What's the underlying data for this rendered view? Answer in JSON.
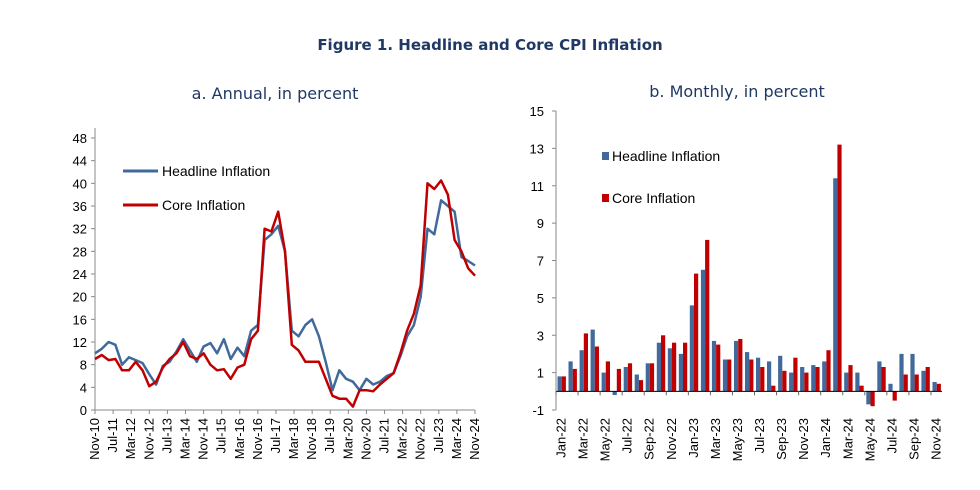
{
  "title": "Figure 1. Headline and Core CPI Inflation",
  "chart_data": [
    {
      "type": "line",
      "subtitle": "a. Annual, in percent",
      "ylim": [
        0,
        48
      ],
      "yticks": [
        0,
        4,
        8,
        12,
        16,
        20,
        24,
        28,
        32,
        36,
        40,
        44,
        48
      ],
      "xlim": [
        "Nov-10",
        "Nov-24"
      ],
      "xtick_labels": [
        "Nov-10",
        "Jul-11",
        "Mar-12",
        "Nov-12",
        "Jul-13",
        "Mar-14",
        "Nov-14",
        "Jul-15",
        "Mar-16",
        "Nov-16",
        "Jul-17",
        "Mar-18",
        "Nov-18",
        "Jul-19",
        "Mar-20",
        "Nov-20",
        "Jul-21",
        "Mar-22",
        "Nov-22",
        "Jul-23",
        "Mar-24",
        "Nov-24"
      ],
      "x_sampling": "quarterly from Nov-10 to Nov-24",
      "legend_position": "top-left",
      "series": [
        {
          "name": "Headline Inflation",
          "color": "#41699b",
          "values": [
            10,
            10.8,
            12,
            11.5,
            8,
            9.3,
            8.8,
            8.3,
            6.3,
            4.5,
            7.8,
            8.5,
            10.3,
            12.5,
            10.5,
            8.5,
            11.2,
            11.8,
            10,
            12.5,
            9,
            11,
            9.5,
            14,
            15,
            30,
            31,
            32.5,
            28,
            14,
            13,
            15,
            16,
            13,
            8.5,
            3.5,
            7,
            5.5,
            5,
            3.5,
            5.5,
            4.5,
            5,
            6,
            6.5,
            9.5,
            13,
            15,
            20,
            32,
            31,
            37,
            36,
            35,
            27,
            26.3,
            25.5
          ]
        },
        {
          "name": "Core Inflation",
          "color": "#c00000",
          "values": [
            9,
            9.7,
            8.8,
            9,
            7,
            7,
            8.5,
            7,
            4.2,
            5,
            7.5,
            9,
            10,
            12,
            9.5,
            9,
            10,
            8,
            7,
            7.2,
            5.5,
            7.5,
            8,
            12.5,
            14,
            32,
            31.5,
            35,
            28,
            11.5,
            10.5,
            8.5,
            8.5,
            8.5,
            5.5,
            2.5,
            2,
            2,
            0.6,
            3.5,
            3.5,
            3.3,
            4.5,
            5.5,
            6.5,
            10,
            14,
            17,
            22,
            40,
            39,
            40.5,
            38,
            30,
            28,
            25,
            23.7
          ]
        }
      ]
    },
    {
      "type": "bar",
      "subtitle": "b. Monthly, in percent",
      "ylim": [
        -1,
        15
      ],
      "yticks": [
        -1,
        1,
        3,
        5,
        7,
        9,
        11,
        13,
        15
      ],
      "categories": [
        "Jan-22",
        "Feb-22",
        "Mar-22",
        "Apr-22",
        "May-22",
        "Jun-22",
        "Jul-22",
        "Aug-22",
        "Sep-22",
        "Oct-22",
        "Nov-22",
        "Dec-22",
        "Jan-23",
        "Feb-23",
        "Mar-23",
        "Apr-23",
        "May-23",
        "Jun-23",
        "Jul-23",
        "Aug-23",
        "Sep-23",
        "Oct-23",
        "Nov-23",
        "Dec-23",
        "Jan-24",
        "Feb-24",
        "Mar-24",
        "Apr-24",
        "May-24",
        "Jun-24",
        "Jul-24",
        "Aug-24",
        "Sep-24",
        "Oct-24",
        "Nov-24"
      ],
      "xtick_labels": [
        "Jan-22",
        "Mar-22",
        "May-22",
        "Jul-22",
        "Sep-22",
        "Nov-22",
        "Jan-23",
        "Mar-23",
        "May-23",
        "Jul-23",
        "Sep-23",
        "Nov-23",
        "Jan-24",
        "Mar-24",
        "May-24",
        "Jul-24",
        "Sep-24",
        "Nov-24"
      ],
      "legend_position": "top-left",
      "series": [
        {
          "name": "Headline Inflation",
          "color": "#41699b",
          "values": [
            0.8,
            1.6,
            2.2,
            3.3,
            1.0,
            -0.2,
            1.3,
            0.9,
            1.5,
            2.6,
            2.3,
            2.0,
            4.6,
            6.5,
            2.7,
            1.7,
            2.7,
            2.1,
            1.8,
            1.6,
            1.9,
            1.0,
            1.3,
            1.4,
            1.6,
            11.4,
            1.0,
            1.0,
            -0.7,
            1.6,
            0.4,
            2.0,
            2.0,
            1.1,
            0.5
          ]
        },
        {
          "name": "Core Inflation",
          "color": "#c00000",
          "values": [
            0.8,
            1.2,
            3.1,
            2.4,
            1.6,
            1.2,
            1.5,
            0.6,
            1.5,
            3.0,
            2.6,
            2.6,
            6.3,
            8.1,
            2.5,
            1.7,
            2.8,
            1.7,
            1.3,
            0.3,
            1.1,
            1.8,
            1.0,
            1.3,
            2.2,
            13.2,
            1.4,
            0.3,
            -0.8,
            1.3,
            -0.5,
            0.9,
            0.9,
            1.3,
            0.4
          ]
        }
      ]
    }
  ]
}
